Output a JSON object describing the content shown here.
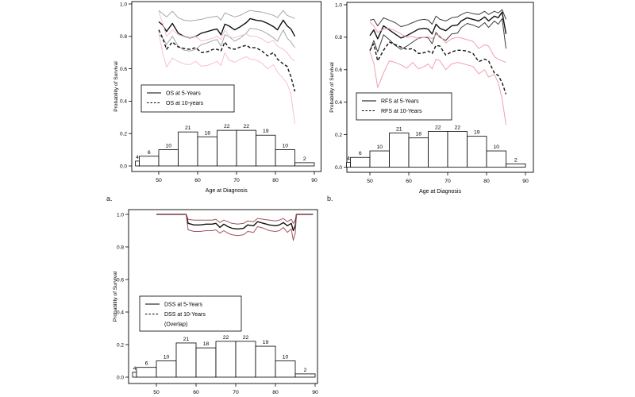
{
  "figure": {
    "background": "#ffffff",
    "axis_color": "#000000",
    "panel_labels": {
      "a": "a.",
      "b": "b."
    }
  },
  "chart_data": [
    {
      "type": "line",
      "id": "a",
      "panel_label": "a.",
      "xlabel": "Age at Diagnosis",
      "ylabel": "Probability of Survival",
      "xlim": [
        43,
        91
      ],
      "ylim": [
        0,
        1
      ],
      "xticks": [
        50,
        60,
        70,
        80,
        90
      ],
      "yticks": [
        "0.0",
        "0.2",
        "0.4",
        "0.6",
        "0.8",
        "1.0"
      ],
      "grid": false,
      "legend": {
        "position": "middle-left",
        "entries": [
          {
            "label": "OS at 5-Years",
            "line": "solid",
            "color": "#000000"
          },
          {
            "label": "OS at 10-years",
            "line": "dashed",
            "color": "#000000"
          }
        ]
      },
      "histogram": {
        "bin_edges": [
          44,
          45,
          50,
          55,
          60,
          65,
          70,
          75,
          80,
          85,
          90
        ],
        "counts": [
          4,
          6,
          10,
          21,
          18,
          22,
          22,
          19,
          10,
          2
        ],
        "bar_heights": [
          0.03,
          0.06,
          0.1,
          0.21,
          0.18,
          0.22,
          0.22,
          0.19,
          0.1,
          0.02
        ],
        "bar_fill": "#ffffff",
        "bar_stroke": "#000000"
      },
      "ages": [
        50,
        51,
        52,
        53.5,
        55,
        56.5,
        58,
        59.5,
        61,
        62.5,
        64,
        65,
        66,
        67,
        68,
        69.5,
        71,
        72.5,
        73.5,
        75,
        76.5,
        78,
        79.5,
        80.5,
        82,
        83,
        84,
        85
      ],
      "series": [
        {
          "name": "OS at 5-Years",
          "style": "solid",
          "color": "#111111",
          "width": 1.4,
          "values": [
            0.89,
            0.87,
            0.83,
            0.88,
            0.82,
            0.8,
            0.79,
            0.8,
            0.82,
            0.83,
            0.84,
            0.845,
            0.81,
            0.875,
            0.865,
            0.84,
            0.86,
            0.885,
            0.91,
            0.9,
            0.895,
            0.88,
            0.86,
            0.84,
            0.9,
            0.865,
            0.845,
            0.8
          ]
        },
        {
          "name": "OS 5-Years upper CI",
          "style": "solid",
          "color": "#a6a6a6",
          "width": 1,
          "values": [
            0.96,
            0.94,
            0.92,
            0.955,
            0.915,
            0.9,
            0.895,
            0.9,
            0.905,
            0.915,
            0.92,
            0.925,
            0.9,
            0.945,
            0.935,
            0.92,
            0.93,
            0.95,
            0.96,
            0.955,
            0.95,
            0.94,
            0.93,
            0.915,
            0.96,
            0.93,
            0.92,
            0.91
          ]
        },
        {
          "name": "OS 5-Years lower CI",
          "style": "solid",
          "color": "#a6a6a6",
          "width": 1,
          "values": [
            0.81,
            0.79,
            0.75,
            0.8,
            0.74,
            0.715,
            0.71,
            0.72,
            0.75,
            0.76,
            0.775,
            0.78,
            0.74,
            0.81,
            0.8,
            0.77,
            0.79,
            0.82,
            0.85,
            0.845,
            0.835,
            0.815,
            0.79,
            0.77,
            0.84,
            0.79,
            0.765,
            0.73
          ]
        },
        {
          "name": "OS at 10-years",
          "style": "dashed",
          "color": "#111111",
          "width": 1.4,
          "values": [
            0.84,
            0.79,
            0.72,
            0.765,
            0.735,
            0.725,
            0.72,
            0.73,
            0.7,
            0.705,
            0.72,
            0.72,
            0.71,
            0.765,
            0.73,
            0.72,
            0.735,
            0.745,
            0.73,
            0.73,
            0.71,
            0.68,
            0.7,
            0.66,
            0.63,
            0.615,
            0.55,
            0.46
          ]
        },
        {
          "name": "OS 10-years upper CI",
          "style": "solid",
          "color": "#f6c2ca",
          "width": 1,
          "values": [
            0.955,
            0.88,
            0.8,
            0.84,
            0.81,
            0.8,
            0.79,
            0.8,
            0.77,
            0.78,
            0.79,
            0.8,
            0.78,
            0.84,
            0.8,
            0.79,
            0.805,
            0.815,
            0.8,
            0.8,
            0.785,
            0.76,
            0.775,
            0.74,
            0.72,
            0.7,
            0.665,
            0.65
          ]
        },
        {
          "name": "OS 10-years lower CI",
          "style": "solid",
          "color": "#f6c2ca",
          "width": 1,
          "values": [
            0.82,
            0.7,
            0.61,
            0.665,
            0.645,
            0.63,
            0.625,
            0.645,
            0.615,
            0.62,
            0.635,
            0.645,
            0.62,
            0.7,
            0.655,
            0.64,
            0.66,
            0.675,
            0.66,
            0.655,
            0.635,
            0.6,
            0.625,
            0.58,
            0.54,
            0.51,
            0.44,
            0.26
          ]
        }
      ]
    },
    {
      "type": "line",
      "id": "b",
      "panel_label": "b.",
      "xlabel": "Age at Diagnosis",
      "ylabel": "Probability of Survival",
      "xlim": [
        43,
        91
      ],
      "ylim": [
        0,
        1
      ],
      "xticks": [
        50,
        60,
        70,
        80,
        90
      ],
      "yticks": [
        "0.0",
        "0.2",
        "0.4",
        "0.6",
        "0.8",
        "1.0"
      ],
      "grid": false,
      "legend": {
        "position": "middle-left",
        "entries": [
          {
            "label": "RFS at 5-Years",
            "line": "solid",
            "color": "#000000"
          },
          {
            "label": "RFS at 10-Years",
            "line": "dashed",
            "color": "#000000"
          }
        ]
      },
      "histogram": {
        "bin_edges": [
          44,
          45,
          50,
          55,
          60,
          65,
          70,
          75,
          80,
          85,
          90
        ],
        "counts": [
          4,
          6,
          10,
          21,
          18,
          22,
          22,
          19,
          10,
          2
        ],
        "bar_heights": [
          0.03,
          0.06,
          0.1,
          0.21,
          0.18,
          0.22,
          0.22,
          0.19,
          0.1,
          0.02
        ],
        "bar_fill": "#ffffff",
        "bar_stroke": "#000000"
      },
      "ages": [
        50,
        51,
        52,
        53.5,
        55,
        56.5,
        58,
        59.5,
        61,
        62.5,
        64,
        65,
        66,
        67,
        68,
        69.5,
        71,
        72.5,
        73.5,
        75,
        76.5,
        78,
        79.5,
        80.5,
        82,
        83,
        84,
        85
      ],
      "series": [
        {
          "name": "RFS at 5-Years",
          "style": "solid",
          "color": "#111111",
          "width": 1.4,
          "values": [
            0.81,
            0.845,
            0.79,
            0.87,
            0.845,
            0.82,
            0.795,
            0.81,
            0.83,
            0.85,
            0.855,
            0.85,
            0.82,
            0.88,
            0.855,
            0.84,
            0.87,
            0.875,
            0.9,
            0.92,
            0.91,
            0.9,
            0.925,
            0.9,
            0.93,
            0.92,
            0.955,
            0.82
          ]
        },
        {
          "name": "RFS 5-Years upper CI",
          "style": "solid",
          "color": "#3d3d3d",
          "width": 1,
          "values": [
            0.905,
            0.91,
            0.87,
            0.92,
            0.905,
            0.89,
            0.865,
            0.875,
            0.89,
            0.905,
            0.91,
            0.905,
            0.88,
            0.93,
            0.91,
            0.9,
            0.92,
            0.925,
            0.94,
            0.955,
            0.945,
            0.94,
            0.96,
            0.94,
            0.96,
            0.95,
            0.97,
            0.91
          ]
        },
        {
          "name": "RFS 5-Years lower CI",
          "style": "solid",
          "color": "#3d3d3d",
          "width": 1,
          "values": [
            0.715,
            0.78,
            0.71,
            0.815,
            0.785,
            0.75,
            0.725,
            0.745,
            0.77,
            0.795,
            0.8,
            0.795,
            0.76,
            0.83,
            0.8,
            0.78,
            0.82,
            0.825,
            0.86,
            0.885,
            0.875,
            0.86,
            0.89,
            0.86,
            0.9,
            0.88,
            0.915,
            0.73
          ]
        },
        {
          "name": "RFS at 10-Years",
          "style": "dashed",
          "color": "#111111",
          "width": 1.4,
          "values": [
            0.72,
            0.76,
            0.655,
            0.72,
            0.77,
            0.755,
            0.74,
            0.725,
            0.73,
            0.7,
            0.705,
            0.715,
            0.7,
            0.75,
            0.745,
            0.69,
            0.71,
            0.72,
            0.72,
            0.715,
            0.7,
            0.65,
            0.665,
            0.655,
            0.58,
            0.565,
            0.52,
            0.45
          ]
        },
        {
          "name": "RFS 10-Years upper CI",
          "style": "solid",
          "color": "#f29fae",
          "width": 1,
          "values": [
            0.895,
            0.87,
            0.83,
            0.85,
            0.855,
            0.84,
            0.82,
            0.8,
            0.805,
            0.79,
            0.8,
            0.805,
            0.79,
            0.815,
            0.81,
            0.765,
            0.79,
            0.8,
            0.795,
            0.785,
            0.775,
            0.73,
            0.755,
            0.745,
            0.68,
            0.665,
            0.655,
            0.645
          ]
        },
        {
          "name": "RFS 10-Years lower CI",
          "style": "solid",
          "color": "#f29fae",
          "width": 1,
          "values": [
            0.71,
            0.64,
            0.49,
            0.58,
            0.655,
            0.645,
            0.63,
            0.61,
            0.645,
            0.605,
            0.62,
            0.635,
            0.605,
            0.665,
            0.655,
            0.6,
            0.635,
            0.645,
            0.64,
            0.63,
            0.62,
            0.575,
            0.6,
            0.555,
            0.57,
            0.52,
            0.42,
            0.26
          ]
        }
      ]
    },
    {
      "type": "line",
      "id": "c",
      "panel_label": "",
      "xlabel": "",
      "ylabel": "Probability of Survival",
      "xlim": [
        43,
        91
      ],
      "ylim": [
        0,
        1
      ],
      "xticks": [
        50,
        60,
        70,
        80,
        90
      ],
      "yticks": [
        "0.0",
        "0.2",
        "0.4",
        "0.6",
        "0.8",
        "1.0"
      ],
      "grid": false,
      "legend": {
        "position": "middle-left",
        "entries": [
          {
            "label": "DSS at 5-Years",
            "line": "solid",
            "color": "#000000"
          },
          {
            "label": "DSS at 10-Years",
            "line": "dashed",
            "color": "#000000"
          },
          {
            "label": "(Overlap)",
            "line": "none",
            "color": "#000000"
          }
        ]
      },
      "histogram": {
        "bin_edges": [
          44,
          45,
          50,
          55,
          60,
          65,
          70,
          75,
          80,
          85,
          90
        ],
        "counts": [
          4,
          6,
          10,
          21,
          18,
          22,
          22,
          19,
          10,
          2
        ],
        "bar_heights": [
          0.03,
          0.06,
          0.1,
          0.21,
          0.18,
          0.22,
          0.22,
          0.19,
          0.1,
          0.02
        ],
        "bar_fill": "#ffffff",
        "bar_stroke": "#000000"
      },
      "ages": [
        50,
        57.5,
        58,
        59.5,
        61,
        62.5,
        64,
        65,
        66,
        67,
        68,
        69,
        70.5,
        72,
        73,
        74.5,
        75.5,
        77,
        78.5,
        80,
        81,
        82,
        83,
        84,
        84.5,
        85,
        85.3,
        89.5
      ],
      "series": [
        {
          "name": "DSS upper CI",
          "style": "solid",
          "color": "#a4525e",
          "width": 1,
          "values": [
            1.0,
            1.0,
            0.97,
            0.965,
            0.965,
            0.965,
            0.965,
            0.97,
            0.95,
            0.965,
            0.955,
            0.945,
            0.94,
            0.945,
            0.96,
            0.955,
            0.975,
            0.97,
            0.965,
            0.96,
            0.965,
            0.975,
            0.955,
            0.97,
            0.945,
            0.965,
            1.0,
            1.0
          ]
        },
        {
          "name": "DSS at 5-Years / DSS at 10-Years (overlap)",
          "style": "solid",
          "color": "#111111",
          "width": 1.4,
          "values": [
            1.0,
            1.0,
            0.945,
            0.935,
            0.935,
            0.94,
            0.94,
            0.945,
            0.92,
            0.94,
            0.925,
            0.915,
            0.91,
            0.915,
            0.935,
            0.93,
            0.955,
            0.945,
            0.935,
            0.93,
            0.935,
            0.95,
            0.93,
            0.945,
            0.9,
            0.93,
            1.0,
            1.0
          ]
        },
        {
          "name": "DSS lower CI",
          "style": "solid",
          "color": "#a4525e",
          "width": 1,
          "values": [
            1.0,
            1.0,
            0.905,
            0.895,
            0.895,
            0.9,
            0.9,
            0.905,
            0.885,
            0.9,
            0.885,
            0.875,
            0.87,
            0.875,
            0.895,
            0.89,
            0.925,
            0.915,
            0.9,
            0.895,
            0.9,
            0.92,
            0.89,
            0.91,
            0.84,
            0.885,
            1.0,
            1.0
          ]
        }
      ]
    }
  ]
}
